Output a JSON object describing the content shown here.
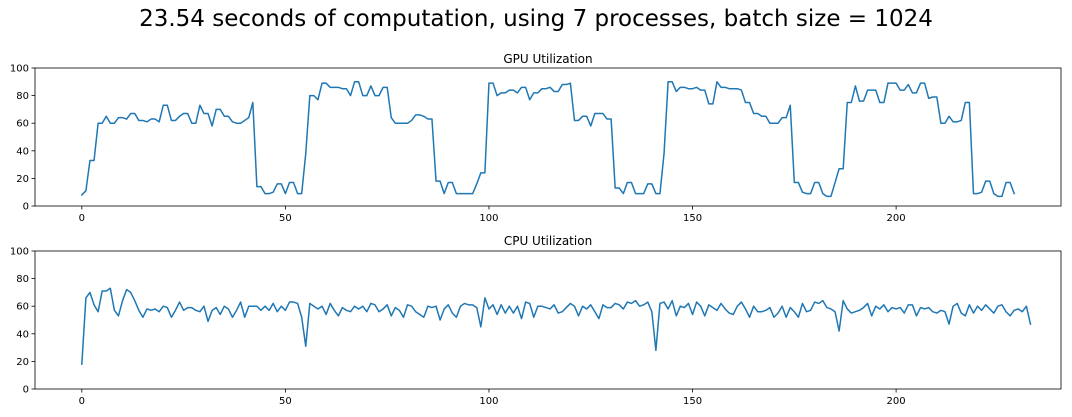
{
  "figure": {
    "suptitle": "23.54 seconds of computation, using 7 processes, batch size = 1024"
  },
  "colors": {
    "line": "#1f77b4",
    "axis": "#000000"
  },
  "chart_data": [
    {
      "type": "line",
      "title": "GPU Utilization",
      "xlabel": "",
      "ylabel": "",
      "xlim": [
        -11.5,
        240.5
      ],
      "ylim": [
        0,
        100
      ],
      "xticks": [
        0,
        50,
        100,
        150,
        200
      ],
      "yticks": [
        0,
        20,
        40,
        60,
        80,
        100
      ],
      "grid": false,
      "series": [
        {
          "values": [
            8,
            11,
            33,
            33,
            60,
            60,
            65,
            60,
            60,
            64,
            64,
            63,
            67,
            67,
            62,
            62,
            61,
            63,
            63,
            61,
            73,
            73,
            62,
            62,
            65,
            67,
            67,
            60,
            60,
            73,
            67,
            67,
            58,
            70,
            70,
            65,
            65,
            61,
            60,
            60,
            62,
            64,
            75,
            14,
            14,
            9,
            9,
            10,
            16,
            16,
            9,
            17,
            17,
            9,
            9,
            38,
            80,
            80,
            77,
            89,
            89,
            86,
            86,
            86,
            85,
            85,
            80,
            90,
            90,
            80,
            80,
            87,
            80,
            80,
            86,
            86,
            64,
            60,
            60,
            60,
            60,
            62,
            66,
            66,
            65,
            63,
            63,
            18,
            18,
            9,
            17,
            17,
            9,
            9,
            9,
            9,
            9,
            16,
            24,
            24,
            89,
            89,
            80,
            82,
            82,
            84,
            84,
            82,
            86,
            86,
            77,
            82,
            82,
            85,
            85,
            86,
            83,
            83,
            88,
            88,
            89,
            62,
            62,
            65,
            65,
            58,
            67,
            67,
            67,
            63,
            63,
            13,
            13,
            9,
            17,
            17,
            9,
            9,
            9,
            16,
            16,
            9,
            9,
            38,
            90,
            90,
            83,
            86,
            86,
            85,
            85,
            86,
            84,
            84,
            74,
            74,
            90,
            86,
            86,
            85,
            85,
            85,
            84,
            75,
            75,
            67,
            67,
            65,
            65,
            60,
            60,
            60,
            64,
            64,
            73,
            17,
            17,
            10,
            9,
            9,
            17,
            17,
            9,
            7,
            7,
            17,
            27,
            27,
            75,
            75,
            87,
            76,
            76,
            84,
            84,
            84,
            75,
            75,
            89,
            89,
            89,
            84,
            84,
            88,
            82,
            82,
            89,
            89,
            78,
            79,
            79,
            60,
            60,
            65,
            61,
            61,
            62,
            75,
            75,
            9,
            9,
            10,
            18,
            18,
            9,
            7,
            7,
            17,
            17,
            9
          ]
        }
      ]
    },
    {
      "type": "line",
      "title": "CPU Utilization",
      "xlabel": "",
      "ylabel": "",
      "xlim": [
        -11.5,
        240.5
      ],
      "ylim": [
        0,
        100
      ],
      "xticks": [
        0,
        50,
        100,
        150,
        200
      ],
      "yticks": [
        0,
        20,
        40,
        60,
        80,
        100
      ],
      "grid": false,
      "series": [
        {
          "values": [
            18,
            66,
            70,
            61,
            56,
            71,
            71,
            73,
            57,
            53,
            64,
            72,
            70,
            64,
            57,
            52,
            58,
            57,
            58,
            56,
            60,
            59,
            52,
            57,
            63,
            57,
            59,
            59,
            57,
            56,
            60,
            49,
            57,
            59,
            54,
            60,
            58,
            52,
            57,
            63,
            52,
            60,
            60,
            60,
            57,
            60,
            57,
            62,
            56,
            60,
            57,
            63,
            63,
            62,
            52,
            31,
            62,
            60,
            58,
            60,
            54,
            62,
            57,
            53,
            59,
            57,
            56,
            60,
            58,
            60,
            56,
            62,
            61,
            56,
            58,
            61,
            53,
            59,
            57,
            52,
            61,
            60,
            56,
            54,
            52,
            60,
            59,
            60,
            50,
            58,
            61,
            55,
            52,
            60,
            62,
            61,
            61,
            59,
            45,
            66,
            58,
            61,
            54,
            61,
            55,
            60,
            55,
            60,
            51,
            63,
            62,
            52,
            60,
            60,
            59,
            58,
            61,
            55,
            56,
            59,
            62,
            60,
            53,
            60,
            58,
            61,
            56,
            51,
            61,
            59,
            59,
            62,
            61,
            58,
            63,
            62,
            64,
            60,
            61,
            63,
            56,
            28,
            62,
            63,
            58,
            64,
            53,
            60,
            59,
            62,
            54,
            63,
            60,
            53,
            61,
            59,
            57,
            62,
            58,
            55,
            54,
            60,
            63,
            58,
            52,
            60,
            56,
            56,
            57,
            59,
            52,
            55,
            60,
            52,
            59,
            56,
            52,
            62,
            56,
            57,
            63,
            62,
            64,
            59,
            58,
            56,
            42,
            64,
            58,
            55,
            56,
            57,
            59,
            62,
            53,
            60,
            58,
            61,
            56,
            59,
            58,
            59,
            55,
            61,
            61,
            53,
            59,
            58,
            59,
            56,
            55,
            57,
            56,
            47,
            60,
            62,
            55,
            53,
            61,
            55,
            60,
            57,
            61,
            58,
            55,
            60,
            61,
            56,
            53,
            57,
            58,
            56,
            60,
            47
          ]
        }
      ]
    }
  ]
}
